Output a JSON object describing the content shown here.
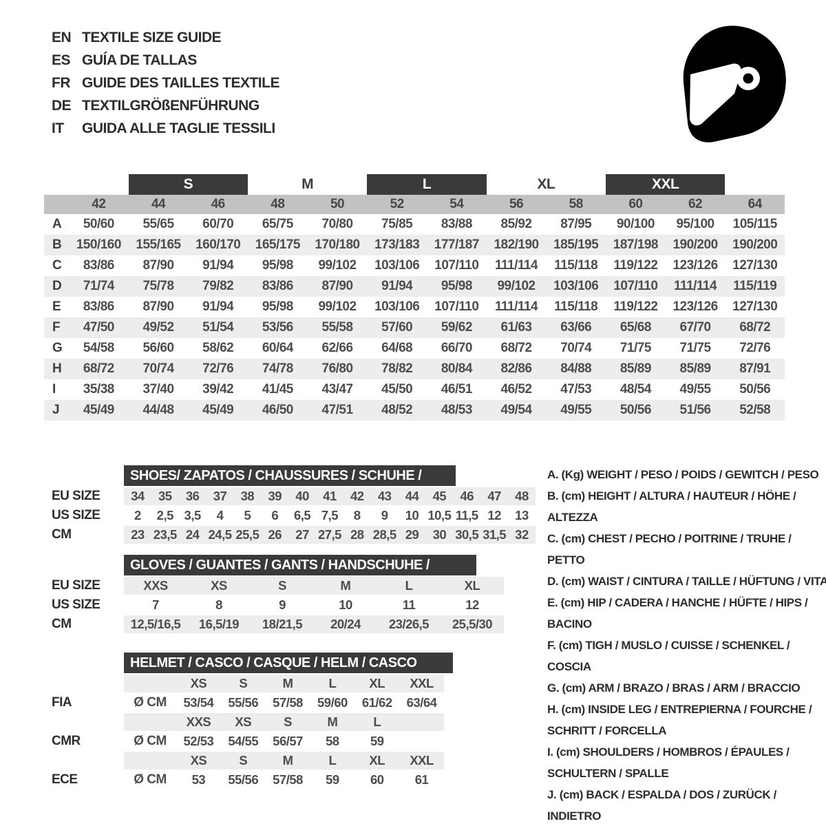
{
  "colors": {
    "dark_bar": "#3a3a3a",
    "numbers_band": "#c2c2c2",
    "row_stripe": "#ededed",
    "table_text": "#4d4d4d",
    "heading_text": "#2d2d2d",
    "bar_text": "#ffffff"
  },
  "header": {
    "languages": [
      {
        "code": "EN",
        "label": "TEXTILE SIZE GUIDE"
      },
      {
        "code": "ES",
        "label": "GUÍA DE TALLAS"
      },
      {
        "code": "FR",
        "label": "GUIDE DES TAILLES TEXTILE"
      },
      {
        "code": "DE",
        "label": "TEXTILGRÖßENFÜHRUNG"
      },
      {
        "code": "IT",
        "label": "GUIDA ALLE TAGLIE TESSILI"
      }
    ],
    "icon": "full-face-helmet-icon"
  },
  "textile_table": {
    "size_bands": [
      {
        "label": "S",
        "dark": true
      },
      {
        "label": "M",
        "dark": false
      },
      {
        "label": "L",
        "dark": true
      },
      {
        "label": "XL",
        "dark": false
      },
      {
        "label": "XXL",
        "dark": true
      }
    ],
    "sizes": [
      "42",
      "44",
      "46",
      "48",
      "50",
      "52",
      "54",
      "56",
      "58",
      "60",
      "62",
      "64"
    ],
    "rows": [
      {
        "label": "A",
        "values": [
          "50/60",
          "55/65",
          "60/70",
          "65/75",
          "70/80",
          "75/85",
          "83/88",
          "85/92",
          "87/95",
          "90/100",
          "95/100",
          "105/115"
        ]
      },
      {
        "label": "B",
        "values": [
          "150/160",
          "155/165",
          "160/170",
          "165/175",
          "170/180",
          "173/183",
          "177/187",
          "182/190",
          "185/195",
          "187/198",
          "190/200",
          "190/200"
        ]
      },
      {
        "label": "C",
        "values": [
          "83/86",
          "87/90",
          "91/94",
          "95/98",
          "99/102",
          "103/106",
          "107/110",
          "111/114",
          "115/118",
          "119/122",
          "123/126",
          "127/130"
        ]
      },
      {
        "label": "D",
        "values": [
          "71/74",
          "75/78",
          "79/82",
          "83/86",
          "87/90",
          "91/94",
          "95/98",
          "99/102",
          "103/106",
          "107/110",
          "111/114",
          "115/119"
        ]
      },
      {
        "label": "E",
        "values": [
          "83/86",
          "87/90",
          "91/94",
          "95/98",
          "99/102",
          "103/106",
          "107/110",
          "111/114",
          "115/118",
          "119/122",
          "123/126",
          "127/130"
        ]
      },
      {
        "label": "F",
        "values": [
          "47/50",
          "49/52",
          "51/54",
          "53/56",
          "55/58",
          "57/60",
          "59/62",
          "61/63",
          "63/66",
          "65/68",
          "67/70",
          "68/72"
        ]
      },
      {
        "label": "G",
        "values": [
          "54/58",
          "56/60",
          "58/62",
          "60/64",
          "62/66",
          "64/68",
          "66/70",
          "68/72",
          "70/74",
          "71/75",
          "71/75",
          "72/76"
        ]
      },
      {
        "label": "H",
        "values": [
          "68/72",
          "70/74",
          "72/76",
          "74/78",
          "76/80",
          "78/82",
          "80/84",
          "82/86",
          "84/88",
          "85/89",
          "85/89",
          "87/91"
        ]
      },
      {
        "label": "I",
        "values": [
          "35/38",
          "37/40",
          "39/42",
          "41/45",
          "43/47",
          "45/50",
          "46/51",
          "46/52",
          "47/53",
          "48/54",
          "49/55",
          "50/56"
        ]
      },
      {
        "label": "J",
        "values": [
          "45/49",
          "44/48",
          "45/49",
          "46/50",
          "47/51",
          "48/52",
          "48/53",
          "49/54",
          "49/55",
          "50/56",
          "51/56",
          "52/58"
        ]
      }
    ]
  },
  "shoes_table": {
    "title": "SHOES/ ZAPATOS / CHAUSSURES / SCHUHE / SCARPE",
    "rows": [
      {
        "label": "EU SIZE",
        "striped": true,
        "values": [
          "34",
          "35",
          "36",
          "37",
          "38",
          "39",
          "40",
          "41",
          "42",
          "43",
          "44",
          "45",
          "46",
          "47",
          "48"
        ]
      },
      {
        "label": "US SIZE",
        "striped": false,
        "values": [
          "2",
          "2,5",
          "3,5",
          "4",
          "5",
          "6",
          "6,5",
          "7,5",
          "8",
          "9",
          "10",
          "10,5",
          "11,5",
          "12",
          "13"
        ]
      },
      {
        "label": "CM",
        "striped": true,
        "values": [
          "23",
          "23,5",
          "24",
          "24,5",
          "25,5",
          "26",
          "27",
          "27,5",
          "28",
          "28,5",
          "29",
          "30",
          "30,5",
          "31,5",
          "32"
        ]
      }
    ]
  },
  "gloves_table": {
    "title": "GLOVES / GUANTES / GANTS / HANDSCHUHE / GUANTI",
    "rows": [
      {
        "label": "EU SIZE",
        "striped": true,
        "values": [
          "XXS",
          "XS",
          "S",
          "M",
          "L",
          "XL"
        ]
      },
      {
        "label": "US SIZE",
        "striped": false,
        "values": [
          "7",
          "8",
          "9",
          "10",
          "11",
          "12"
        ]
      },
      {
        "label": "CM",
        "striped": true,
        "values": [
          "12,5/16,5",
          "16,5/19",
          "18/21,5",
          "20/24",
          "23/26,5",
          "25,5/30"
        ]
      }
    ]
  },
  "helmet_table": {
    "title": "HELMET / CASCO / CASQUE / HELM / CASCO",
    "unit_label": "Ø CM",
    "sections": [
      {
        "label": "FIA",
        "sizes": [
          "XS",
          "S",
          "M",
          "L",
          "XL",
          "XXL"
        ],
        "values": [
          "53/54",
          "55/56",
          "57/58",
          "59/60",
          "61/62",
          "63/64"
        ]
      },
      {
        "label": "CMR",
        "sizes": [
          "XXS",
          "XS",
          "S",
          "M",
          "L",
          ""
        ],
        "values": [
          "52/53",
          "54/55",
          "56/57",
          "58",
          "59",
          ""
        ]
      },
      {
        "label": "ECE",
        "sizes": [
          "XS",
          "S",
          "M",
          "L",
          "XL",
          "XXL"
        ],
        "values": [
          "53",
          "55/56",
          "57/58",
          "59",
          "60",
          "61"
        ]
      }
    ]
  },
  "legend": {
    "items": [
      "A. (Kg) WEIGHT / PESO / POIDS / GEWITCH / PESO",
      "B. (cm) HEIGHT / ALTURA / HAUTEUR / HÖHE / ALTEZZA",
      "C. (cm) CHEST / PECHO / POITRINE / TRUHE / PETTO",
      "D. (cm) WAIST / CINTURA / TAILLE / HÜFTUNG / VITA",
      "E. (cm) HIP / CADERA / HANCHE / HÜFTE / HIPS / BACINO",
      "F. (cm) TIGH / MUSLO / CUISSE / SCHENKEL / COSCIA",
      "G. (cm) ARM / BRAZO / BRAS / ARM / BRACCIO",
      "H. (cm) INSIDE LEG / ENTREPIERNA / FOURCHE /\nSCHRITT / FORCELLA",
      "I. (cm) SHOULDERS / HOMBROS / ÉPAULES /\nSCHULTERN / SPALLE",
      "J. (cm) BACK / ESPALDA / DOS / ZURÜCK / INDIETRO"
    ]
  }
}
